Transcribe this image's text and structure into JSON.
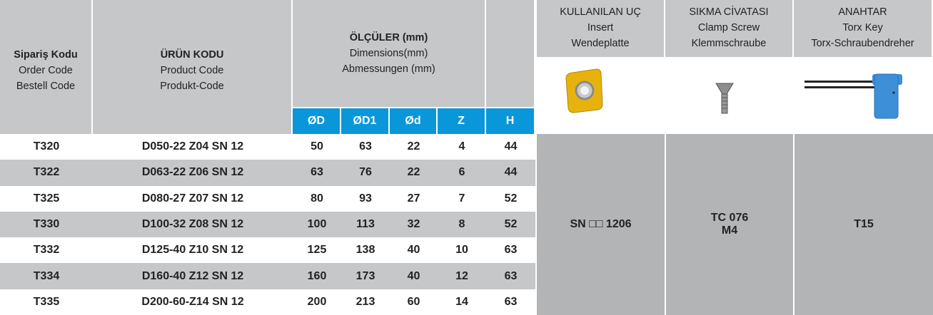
{
  "header": {
    "order_code": [
      "Sipariş Kodu",
      "Order Code",
      "Bestell Code"
    ],
    "product_code": [
      "ÜRÜN KODU",
      "Product Code",
      "Produkt-Code"
    ],
    "dimensions": [
      "ÖLÇÜLER (mm)",
      "Dimensions(mm)",
      "Abmessungen (mm)"
    ],
    "dim_columns": [
      "ØD",
      "ØD1",
      "Ød",
      "Z",
      "H"
    ],
    "insert": [
      "KULLANILAN UÇ",
      "Insert",
      "Wendeplatte"
    ],
    "clamp_screw": [
      "SIKMA CİVATASI",
      "Clamp Screw",
      "Klemmschraube"
    ],
    "torx_key": [
      "ANAHTAR",
      "Torx Key",
      "Torx-Schraubendreher"
    ]
  },
  "table": {
    "rows": [
      [
        "T320",
        "D050-22 Z04 SN 12",
        50,
        63,
        22,
        4,
        44
      ],
      [
        "T322",
        "D063-22 Z06 SN 12",
        63,
        76,
        22,
        6,
        44
      ],
      [
        "T325",
        "D080-27 Z07 SN 12",
        80,
        93,
        27,
        7,
        52
      ],
      [
        "T330",
        "D100-32 Z08 SN 12",
        100,
        113,
        32,
        8,
        52
      ],
      [
        "T332",
        "D125-40 Z10 SN 12",
        125,
        138,
        40,
        10,
        63
      ],
      [
        "T334",
        "D160-40 Z12 SN 12",
        160,
        173,
        40,
        12,
        63
      ],
      [
        "T335",
        "D200-60-Z14 SN 12",
        200,
        213,
        60,
        14,
        63
      ]
    ]
  },
  "accessories": {
    "insert": "SN □□ 1206",
    "clamp_screw": [
      "TC 076",
      "M4"
    ],
    "torx_key": "T15"
  }
}
